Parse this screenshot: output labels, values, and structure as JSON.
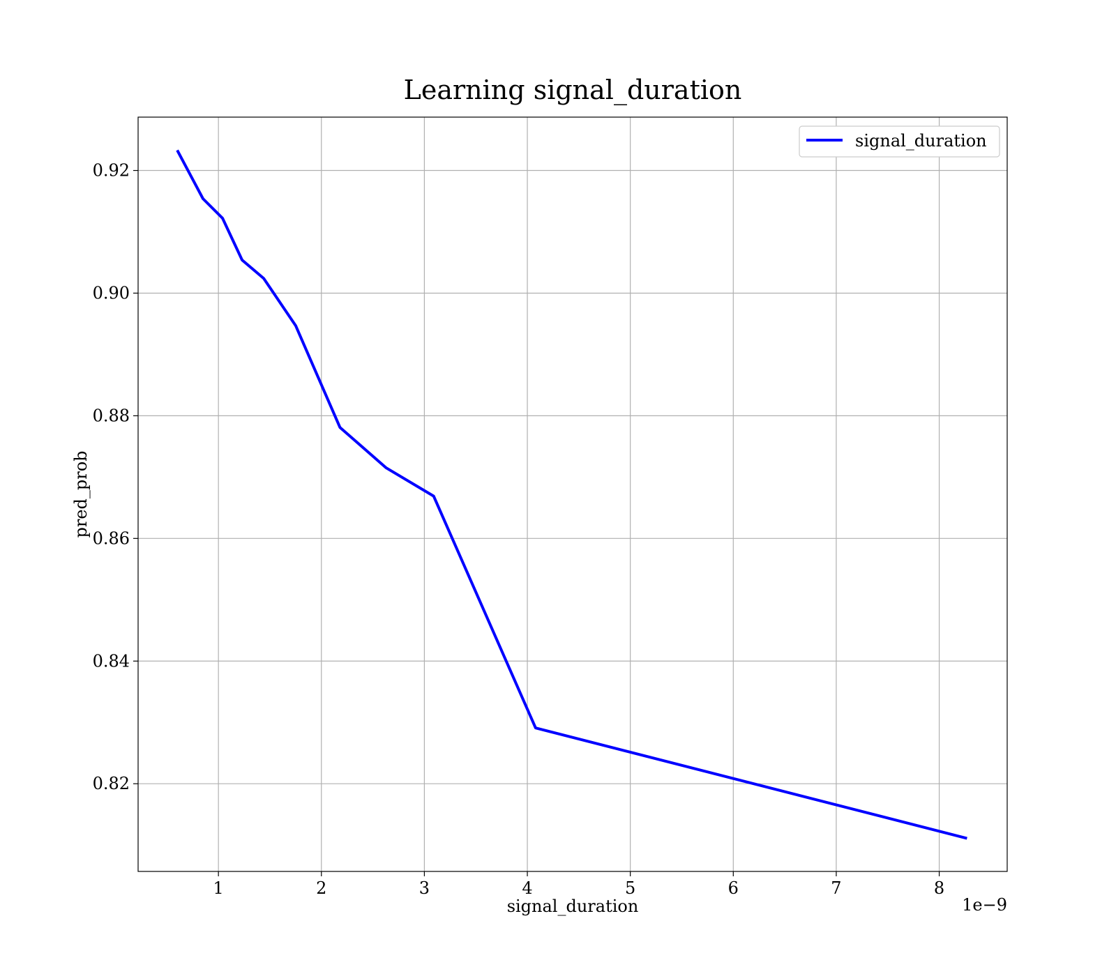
{
  "chart_data": {
    "type": "line",
    "title": "Learning signal_duration",
    "xlabel": "signal_duration",
    "ylabel": "pred_prob",
    "x_offset_label": "1e−9",
    "x_ticks": [
      1,
      2,
      3,
      4,
      5,
      6,
      7,
      8
    ],
    "x_tick_labels": [
      "1",
      "2",
      "3",
      "4",
      "5",
      "6",
      "7",
      "8"
    ],
    "y_ticks": [
      0.82,
      0.84,
      0.86,
      0.88,
      0.9,
      0.92
    ],
    "y_tick_labels": [
      "0.82",
      "0.84",
      "0.86",
      "0.88",
      "0.90",
      "0.92"
    ],
    "xlim": [
      0.22,
      8.66
    ],
    "ylim": [
      0.8057,
      0.9287
    ],
    "grid": true,
    "legend_position": "top-right",
    "series": [
      {
        "name": "signal_duration",
        "color": "#0000ff",
        "x": [
          0.6,
          0.85,
          1.04,
          1.23,
          1.44,
          1.75,
          2.18,
          2.63,
          3.09,
          4.08,
          8.27
        ],
        "y": [
          0.9233,
          0.9154,
          0.9122,
          0.9054,
          0.9024,
          0.8947,
          0.8781,
          0.8715,
          0.8669,
          0.8291,
          0.8111
        ]
      }
    ]
  }
}
